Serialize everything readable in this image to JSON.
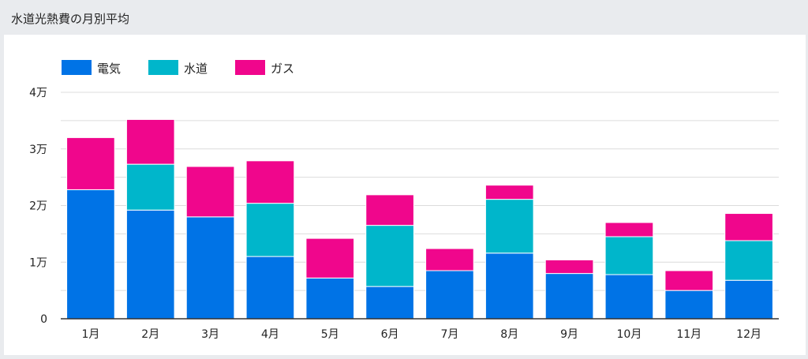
{
  "header": {
    "title": "水道光熱費の月別平均"
  },
  "chart_data": {
    "type": "bar",
    "stacked": true,
    "categories": [
      "1月",
      "2月",
      "3月",
      "4月",
      "5月",
      "6月",
      "7月",
      "8月",
      "9月",
      "10月",
      "11月",
      "12月"
    ],
    "series": [
      {
        "name": "電気",
        "color": "#0073e6",
        "values": [
          22800,
          19200,
          18000,
          11000,
          7200,
          5700,
          8500,
          11600,
          8000,
          7800,
          5000,
          6800
        ]
      },
      {
        "name": "水道",
        "color": "#00b6cb",
        "values": [
          0,
          8100,
          0,
          9400,
          0,
          10800,
          0,
          9500,
          0,
          6700,
          0,
          7000
        ]
      },
      {
        "name": "ガス",
        "color": "#f0068c",
        "values": [
          9200,
          7900,
          8900,
          7500,
          7000,
          5400,
          3900,
          2500,
          2400,
          2500,
          3500,
          4800
        ]
      }
    ],
    "ylim": [
      0,
      40000
    ],
    "yticks": [
      0,
      10000,
      20000,
      30000,
      40000
    ],
    "ytick_labels": [
      "0",
      "1万",
      "2万",
      "3万",
      "4万"
    ],
    "grid": true,
    "legend": "top-left"
  }
}
